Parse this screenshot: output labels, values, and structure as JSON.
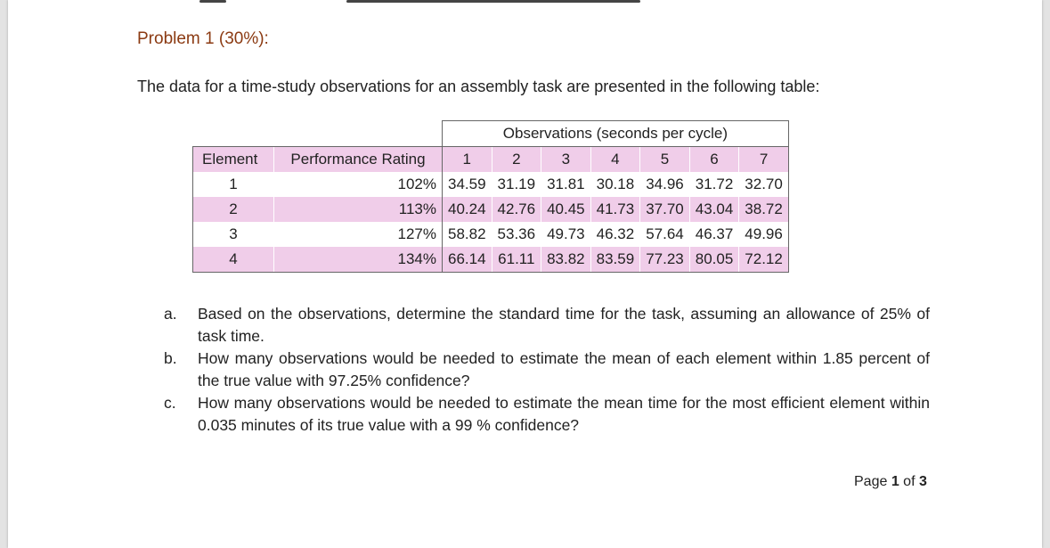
{
  "heading": "Problem 1 (30%):",
  "intro": "The data for a time-study observations for an assembly task are presented in the following table:",
  "table": {
    "group_header": "Observations (seconds per cycle)",
    "col_element": "Element",
    "col_rating": "Performance Rating",
    "obs_headers": [
      "1",
      "2",
      "3",
      "4",
      "5",
      "6",
      "7"
    ],
    "rows": [
      {
        "element": "1",
        "rating": "102%",
        "values": [
          "34.59",
          "31.19",
          "31.81",
          "30.18",
          "34.96",
          "31.72",
          "32.70"
        ]
      },
      {
        "element": "2",
        "rating": "113%",
        "values": [
          "40.24",
          "42.76",
          "40.45",
          "41.73",
          "37.70",
          "43.04",
          "38.72"
        ]
      },
      {
        "element": "3",
        "rating": "127%",
        "values": [
          "58.82",
          "53.36",
          "49.73",
          "46.32",
          "57.64",
          "46.37",
          "49.96"
        ]
      },
      {
        "element": "4",
        "rating": "134%",
        "values": [
          "66.14",
          "61.11",
          "83.82",
          "83.59",
          "77.23",
          "80.05",
          "72.12"
        ]
      }
    ]
  },
  "questions": [
    {
      "marker": "a.",
      "text": "Based on the observations, determine the standard time for the task, assuming an allowance of 25% of task time."
    },
    {
      "marker": "b.",
      "text": "How many observations would be needed to estimate the mean of each element within 1.85 percent of the true value with 97.25% confidence?"
    },
    {
      "marker": "c.",
      "text": "How many observations would be needed to estimate the mean time for the most efficient element within 0.035 minutes of its true value with a 99 % confidence?"
    }
  ],
  "footer": {
    "prefix": "Page ",
    "current": "1",
    "middle": " of ",
    "total": "3"
  },
  "colors": {
    "heading": "#8b3a12",
    "row_highlight": "#f0cde9"
  }
}
